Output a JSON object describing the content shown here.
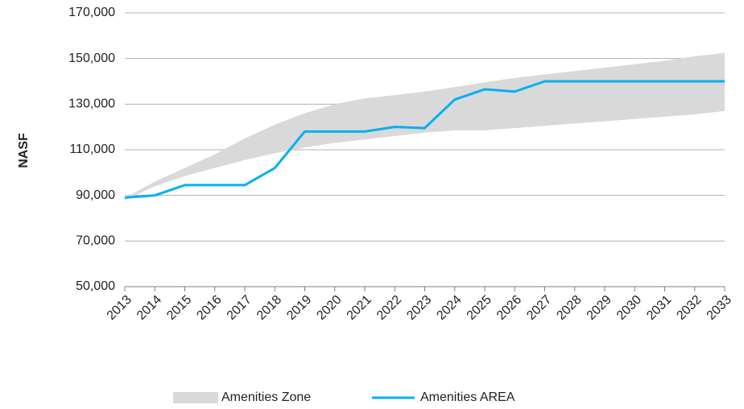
{
  "chart_data": {
    "type": "line",
    "y_label": "NASF",
    "categories": [
      "2013",
      "2014",
      "2015",
      "2016",
      "2017",
      "2018",
      "2019",
      "2020",
      "2021",
      "2022",
      "2023",
      "2024",
      "2025",
      "2026",
      "2027",
      "2028",
      "2029",
      "2030",
      "2031",
      "2032",
      "2033"
    ],
    "series": [
      {
        "name": "Amenities Zone",
        "kind": "band",
        "color": "#d9d9d9",
        "upper": [
          89000,
          96000,
          102000,
          108000,
          115000,
          121000,
          126000,
          130000,
          132500,
          134000,
          135500,
          137500,
          139500,
          141500,
          143000,
          144500,
          146000,
          147500,
          149000,
          151000,
          152500
        ],
        "lower": [
          88000,
          94000,
          98500,
          102000,
          105500,
          108500,
          111000,
          113000,
          114500,
          116000,
          117500,
          118500,
          118500,
          119500,
          120500,
          121500,
          122500,
          123500,
          124500,
          125500,
          127000
        ]
      },
      {
        "name": "Amenities AREA",
        "color": "#00b0f0",
        "values": [
          89000,
          90000,
          94500,
          94500,
          94500,
          102000,
          118000,
          118000,
          118000,
          120000,
          119500,
          132000,
          136500,
          135500,
          140000,
          140000,
          140000,
          140000,
          140000,
          140000,
          140000
        ]
      }
    ],
    "ylim": [
      50000,
      170000
    ],
    "yticks": [
      {
        "value": 50000,
        "label": "50,000"
      },
      {
        "value": 70000,
        "label": "70,000"
      },
      {
        "value": 90000,
        "label": "90,000"
      },
      {
        "value": 110000,
        "label": "110,000"
      },
      {
        "value": 130000,
        "label": "130,000"
      },
      {
        "value": 150000,
        "label": "150,000"
      },
      {
        "value": 170000,
        "label": "170,000"
      }
    ],
    "grid": true,
    "legend": "bottom"
  }
}
